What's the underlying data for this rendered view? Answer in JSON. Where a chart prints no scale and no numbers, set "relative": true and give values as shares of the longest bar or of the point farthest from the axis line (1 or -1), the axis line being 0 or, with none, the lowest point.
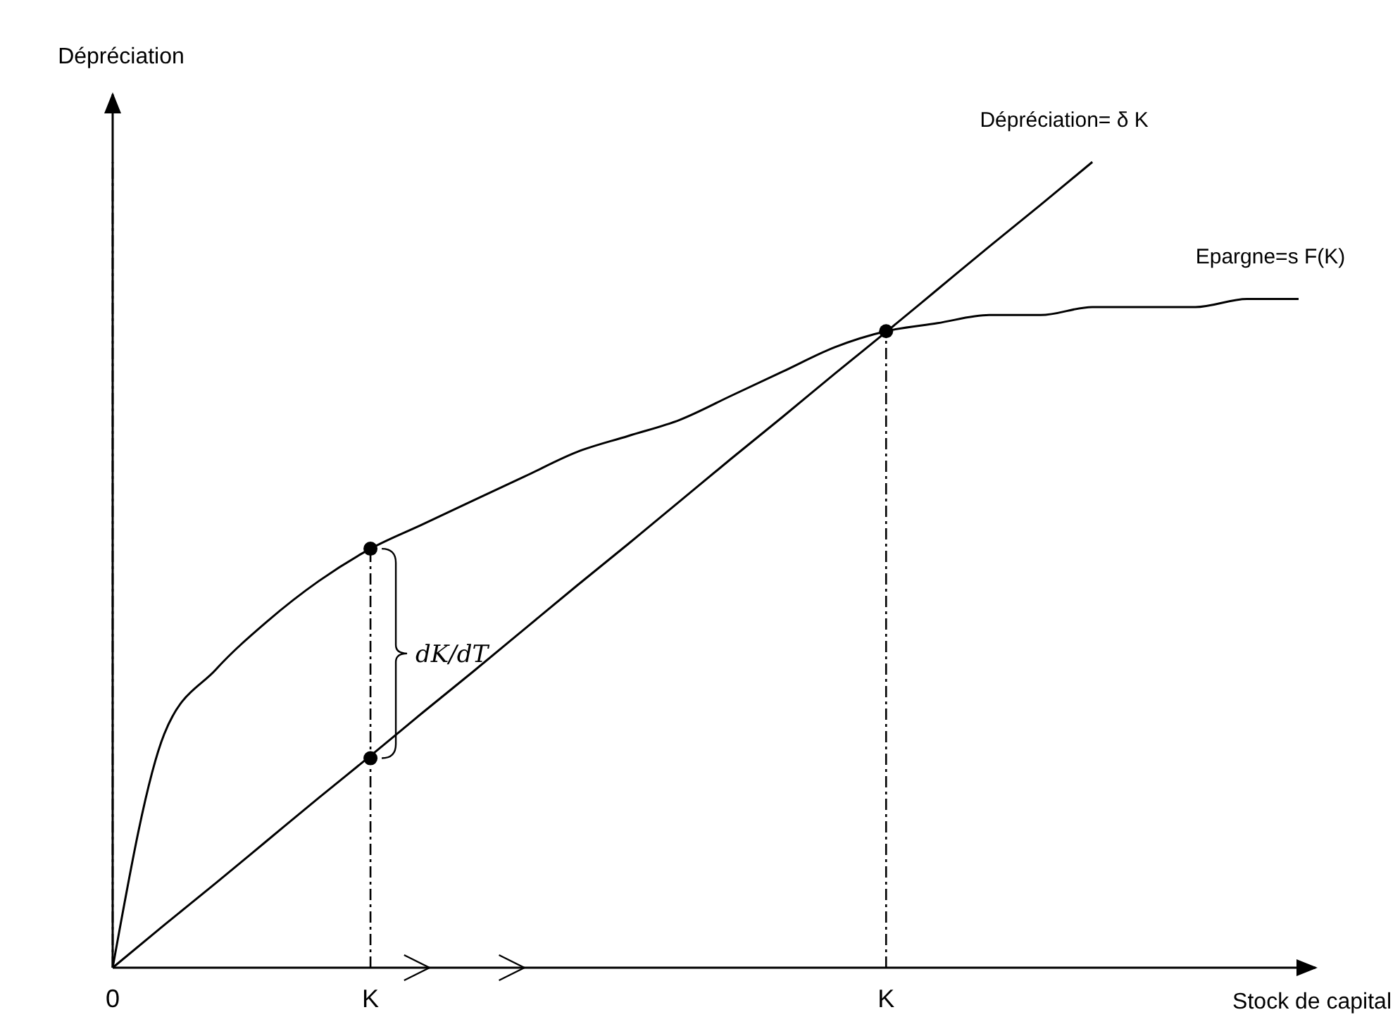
{
  "chart_data": {
    "type": "line",
    "relative": true,
    "xlabel": "Stock de capital",
    "ylabel": "Dépréciation",
    "tick_labels": "x",
    "legend": false,
    "grid": "x",
    "categories": [
      "0",
      null,
      null,
      null,
      null,
      "K",
      null,
      null,
      null,
      null,
      null,
      null,
      null,
      null,
      null,
      "K",
      null,
      null,
      null,
      null,
      null,
      null,
      null,
      null
    ],
    "series": [
      {
        "name": "Dépréciation= δ K",
        "color": "#000000",
        "values": [
          0,
          0.053,
          0.105,
          0.158,
          0.211,
          0.263,
          0.316,
          0.368,
          0.421,
          0.474,
          0.526,
          0.579,
          0.632,
          0.684,
          0.737,
          0.789,
          0.842,
          0.895,
          0.947,
          1.0,
          null,
          null,
          null,
          null
        ]
      },
      {
        "name": "Epargne=s F(K)",
        "color": "#000000",
        "values": [
          0,
          0.29,
          0.37,
          0.43,
          0.48,
          0.52,
          0.55,
          0.58,
          0.61,
          0.64,
          0.66,
          0.68,
          0.71,
          0.74,
          0.77,
          0.79,
          0.8,
          0.81,
          0.81,
          0.82,
          0.82,
          0.82,
          0.83,
          0.83
        ]
      },
      {
        "type": "scatter",
        "marker": "circle",
        "color": "#000000",
        "values": [
          null,
          null,
          null,
          null,
          null,
          0.52,
          null,
          null,
          null,
          null,
          null,
          null,
          null,
          null,
          null,
          0.79,
          null,
          null,
          null,
          null,
          null,
          null,
          null,
          null
        ]
      },
      {
        "type": "scatter",
        "marker": "circle",
        "color": "#000000",
        "values": [
          null,
          null,
          null,
          null,
          null,
          0.26,
          null,
          null,
          null,
          null,
          null,
          null,
          null,
          null,
          null,
          null,
          null,
          null,
          null,
          null,
          null,
          null,
          null,
          null
        ]
      }
    ],
    "annotations": [
      "dK/dT"
    ]
  }
}
